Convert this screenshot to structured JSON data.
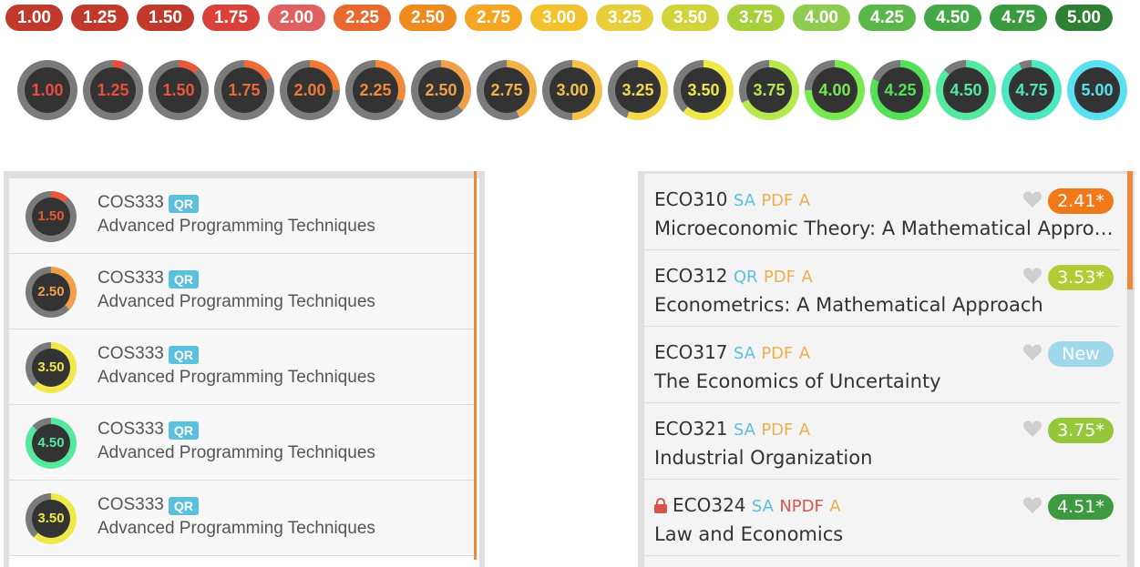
{
  "scale": {
    "pills": [
      {
        "label": "1.00",
        "color": "#c0392b"
      },
      {
        "label": "1.25",
        "color": "#c0392b"
      },
      {
        "label": "1.50",
        "color": "#c0392b"
      },
      {
        "label": "1.75",
        "color": "#d9413a"
      },
      {
        "label": "2.00",
        "color": "#e06060"
      },
      {
        "label": "2.25",
        "color": "#e8692e"
      },
      {
        "label": "2.50",
        "color": "#ef8a1d"
      },
      {
        "label": "2.75",
        "color": "#f5a623"
      },
      {
        "label": "3.00",
        "color": "#f3c12c"
      },
      {
        "label": "3.25",
        "color": "#e6cf3a"
      },
      {
        "label": "3.50",
        "color": "#d2d33b"
      },
      {
        "label": "3.75",
        "color": "#a6cf3c"
      },
      {
        "label": "4.00",
        "color": "#8fcb50"
      },
      {
        "label": "4.25",
        "color": "#5ab84a"
      },
      {
        "label": "4.50",
        "color": "#43a845"
      },
      {
        "label": "4.75",
        "color": "#3a9a3f"
      },
      {
        "label": "5.00",
        "color": "#2f7f33"
      }
    ],
    "gauges": [
      {
        "label": "1.00",
        "value": 0.0,
        "color": "#e74c3c"
      },
      {
        "label": "1.25",
        "value": 0.06,
        "color": "#e74c3c"
      },
      {
        "label": "1.50",
        "value": 0.12,
        "color": "#e8583a"
      },
      {
        "label": "1.75",
        "value": 0.18,
        "color": "#ec6b3a"
      },
      {
        "label": "2.00",
        "value": 0.25,
        "color": "#f07a35"
      },
      {
        "label": "2.25",
        "value": 0.31,
        "color": "#f18a3a"
      },
      {
        "label": "2.50",
        "value": 0.37,
        "color": "#f0a04a"
      },
      {
        "label": "2.75",
        "value": 0.43,
        "color": "#f2b24a"
      },
      {
        "label": "3.00",
        "value": 0.5,
        "color": "#f2c24a"
      },
      {
        "label": "3.25",
        "value": 0.56,
        "color": "#f2d84a"
      },
      {
        "label": "3.50",
        "value": 0.62,
        "color": "#eee84a"
      },
      {
        "label": "3.75",
        "value": 0.68,
        "color": "#b8e850"
      },
      {
        "label": "4.00",
        "value": 0.75,
        "color": "#7ae850"
      },
      {
        "label": "4.25",
        "value": 0.81,
        "color": "#55e05a"
      },
      {
        "label": "4.50",
        "value": 0.87,
        "color": "#55e8a0"
      },
      {
        "label": "4.75",
        "value": 0.93,
        "color": "#4ee8c0"
      },
      {
        "label": "5.00",
        "value": 1.0,
        "color": "#5be0f0"
      }
    ]
  },
  "left_list": {
    "badge": "QR",
    "rows": [
      {
        "score": "1.50",
        "value": 0.12,
        "color": "#e8583a",
        "code": "COS333",
        "title": "Advanced Programming Techniques"
      },
      {
        "score": "2.50",
        "value": 0.37,
        "color": "#f0a04a",
        "code": "COS333",
        "title": "Advanced Programming Techniques"
      },
      {
        "score": "3.50",
        "value": 0.62,
        "color": "#eee84a",
        "code": "COS333",
        "title": "Advanced Programming Techniques"
      },
      {
        "score": "4.50",
        "value": 0.87,
        "color": "#55e8a0",
        "code": "COS333",
        "title": "Advanced Programming Techniques"
      },
      {
        "score": "3.50",
        "value": 0.62,
        "color": "#eee84a",
        "code": "COS333",
        "title": "Advanced Programming Techniques"
      }
    ]
  },
  "right_list": {
    "rows": [
      {
        "code": "ECO310",
        "dist": "SA",
        "pdf": "PDF",
        "audit": "A",
        "pdf_allowed": true,
        "locked": false,
        "title": "Microeconomic Theory: A Mathematical Approach",
        "rating": "2.41*",
        "rating_color": "#f07a1a"
      },
      {
        "code": "ECO312",
        "dist": "QR",
        "pdf": "PDF",
        "audit": "A",
        "pdf_allowed": true,
        "locked": false,
        "title": "Econometrics: A Mathematical Approach",
        "rating": "3.53*",
        "rating_color": "#b3cc35"
      },
      {
        "code": "ECO317",
        "dist": "SA",
        "pdf": "PDF",
        "audit": "A",
        "pdf_allowed": true,
        "locked": false,
        "title": "The Economics of Uncertainty",
        "rating": "New",
        "rating_color": "#9fd8ea"
      },
      {
        "code": "ECO321",
        "dist": "SA",
        "pdf": "PDF",
        "audit": "A",
        "pdf_allowed": true,
        "locked": false,
        "title": "Industrial Organization",
        "rating": "3.75*",
        "rating_color": "#94c83a"
      },
      {
        "code": "ECO324",
        "dist": "SA",
        "pdf": "NPDF",
        "audit": "A",
        "pdf_allowed": false,
        "locked": true,
        "title": "Law and Economics",
        "rating": "4.51*",
        "rating_color": "#3e9a3e"
      }
    ]
  }
}
